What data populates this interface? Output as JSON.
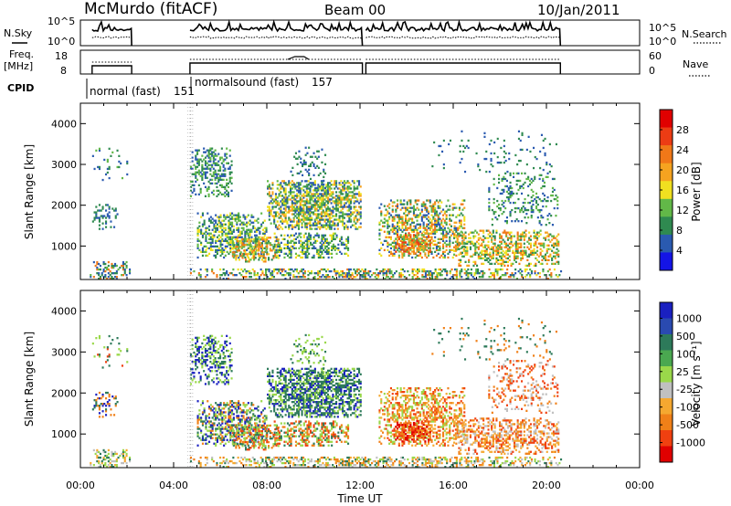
{
  "header": {
    "station": "McMurdo (fitACF)",
    "beam": "Beam 00",
    "date": "10/Jan/2011"
  },
  "side_labels": {
    "nsky": "N.Sky",
    "freq_line1": "Freq.",
    "freq_line2": "[MHz]",
    "cpid": "CPID",
    "nsearch": "N.Search",
    "nave": "Nave"
  },
  "strip_ticks": {
    "nsky_top": "10^5",
    "nsky_bottom": "10^0",
    "nsearch_top": "10^5",
    "nsearch_bottom": "10^0",
    "freq_top": "18",
    "freq_bottom": "8",
    "nave_top": "60",
    "nave_bottom": "0"
  },
  "cpid_modes": [
    {
      "label": "normal (fast)",
      "id": "151",
      "start_hour": 0.0
    },
    {
      "label": "normalsound (fast)",
      "id": "157",
      "start_hour": 4.7
    }
  ],
  "colors": {
    "power": [
      "#1414e6",
      "#2a5ab0",
      "#2f8a50",
      "#62b848",
      "#f0e020",
      "#f5a320",
      "#f07818",
      "#ec3c14",
      "#e00000"
    ],
    "velocity": [
      "#e00000",
      "#f04010",
      "#f08018",
      "#f5a830",
      "#c0c0c0",
      "#9ad84a",
      "#4aa850",
      "#2d7a5a",
      "#2a4ab0",
      "#1a20c0"
    ]
  },
  "chart_data": [
    {
      "type": "heatmap",
      "panel": "power",
      "ylabel": "Slant Range [km]",
      "yticks": [
        "1000",
        "2000",
        "3000",
        "4000"
      ],
      "ylim": [
        180,
        4500
      ],
      "xlim": [
        0,
        24
      ],
      "colorbar_label": "Power [dB]",
      "colorbar_ticks": [
        "4",
        "8",
        "12",
        "16",
        "20",
        "24",
        "28"
      ],
      "colorbar_range": [
        0,
        32
      ],
      "data_gap_hours": [
        [
          2.2,
          4.7
        ],
        [
          20.6,
          24
        ]
      ]
    },
    {
      "type": "heatmap",
      "panel": "velocity",
      "ylabel": "Slant Range [km]",
      "yticks": [
        "1000",
        "2000",
        "3000",
        "4000"
      ],
      "ylim": [
        180,
        4500
      ],
      "xlim": [
        0,
        24
      ],
      "colorbar_label": "Velocity [m s⁻¹]",
      "colorbar_ticks": [
        "1000",
        "500",
        "100",
        "25",
        "-25",
        "-100",
        "-500",
        "-1000"
      ],
      "data_gap_hours": [
        [
          2.2,
          4.7
        ],
        [
          20.6,
          24
        ]
      ]
    }
  ],
  "xaxis": {
    "label": "Time UT",
    "ticks": [
      "00:00",
      "04:00",
      "08:00",
      "12:00",
      "16:00",
      "20:00",
      "00:00"
    ]
  }
}
